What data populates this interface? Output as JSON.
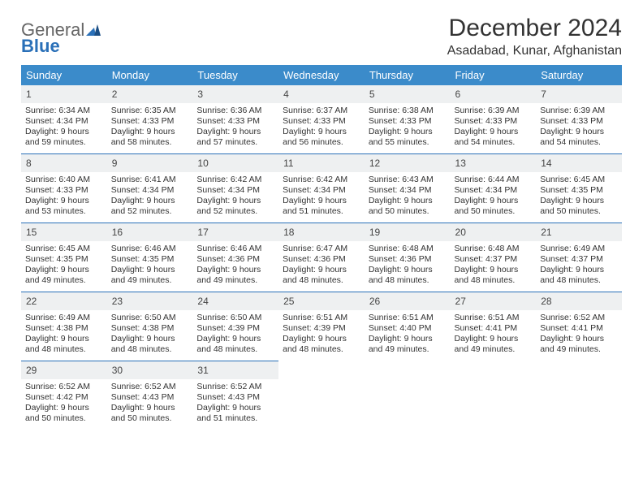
{
  "brand": {
    "line1": "General",
    "line2": "Blue"
  },
  "header": {
    "title": "December 2024",
    "location": "Asadabad, Kunar, Afghanistan"
  },
  "style": {
    "header_bg": "#3b8bca",
    "header_fg": "#ffffff",
    "daynum_bg": "#eef0f1",
    "row_divider": "#2a70b8",
    "text_color": "#333333",
    "brand_blue": "#2a70b8",
    "cell_font_size": 10.5,
    "title_font_size": 30
  },
  "weekdays": [
    "Sunday",
    "Monday",
    "Tuesday",
    "Wednesday",
    "Thursday",
    "Friday",
    "Saturday"
  ],
  "days": [
    {
      "n": 1,
      "sr": "6:34 AM",
      "ss": "4:34 PM",
      "dl": "9 hours and 59 minutes."
    },
    {
      "n": 2,
      "sr": "6:35 AM",
      "ss": "4:33 PM",
      "dl": "9 hours and 58 minutes."
    },
    {
      "n": 3,
      "sr": "6:36 AM",
      "ss": "4:33 PM",
      "dl": "9 hours and 57 minutes."
    },
    {
      "n": 4,
      "sr": "6:37 AM",
      "ss": "4:33 PM",
      "dl": "9 hours and 56 minutes."
    },
    {
      "n": 5,
      "sr": "6:38 AM",
      "ss": "4:33 PM",
      "dl": "9 hours and 55 minutes."
    },
    {
      "n": 6,
      "sr": "6:39 AM",
      "ss": "4:33 PM",
      "dl": "9 hours and 54 minutes."
    },
    {
      "n": 7,
      "sr": "6:39 AM",
      "ss": "4:33 PM",
      "dl": "9 hours and 54 minutes."
    },
    {
      "n": 8,
      "sr": "6:40 AM",
      "ss": "4:33 PM",
      "dl": "9 hours and 53 minutes."
    },
    {
      "n": 9,
      "sr": "6:41 AM",
      "ss": "4:34 PM",
      "dl": "9 hours and 52 minutes."
    },
    {
      "n": 10,
      "sr": "6:42 AM",
      "ss": "4:34 PM",
      "dl": "9 hours and 52 minutes."
    },
    {
      "n": 11,
      "sr": "6:42 AM",
      "ss": "4:34 PM",
      "dl": "9 hours and 51 minutes."
    },
    {
      "n": 12,
      "sr": "6:43 AM",
      "ss": "4:34 PM",
      "dl": "9 hours and 50 minutes."
    },
    {
      "n": 13,
      "sr": "6:44 AM",
      "ss": "4:34 PM",
      "dl": "9 hours and 50 minutes."
    },
    {
      "n": 14,
      "sr": "6:45 AM",
      "ss": "4:35 PM",
      "dl": "9 hours and 50 minutes."
    },
    {
      "n": 15,
      "sr": "6:45 AM",
      "ss": "4:35 PM",
      "dl": "9 hours and 49 minutes."
    },
    {
      "n": 16,
      "sr": "6:46 AM",
      "ss": "4:35 PM",
      "dl": "9 hours and 49 minutes."
    },
    {
      "n": 17,
      "sr": "6:46 AM",
      "ss": "4:36 PM",
      "dl": "9 hours and 49 minutes."
    },
    {
      "n": 18,
      "sr": "6:47 AM",
      "ss": "4:36 PM",
      "dl": "9 hours and 48 minutes."
    },
    {
      "n": 19,
      "sr": "6:48 AM",
      "ss": "4:36 PM",
      "dl": "9 hours and 48 minutes."
    },
    {
      "n": 20,
      "sr": "6:48 AM",
      "ss": "4:37 PM",
      "dl": "9 hours and 48 minutes."
    },
    {
      "n": 21,
      "sr": "6:49 AM",
      "ss": "4:37 PM",
      "dl": "9 hours and 48 minutes."
    },
    {
      "n": 22,
      "sr": "6:49 AM",
      "ss": "4:38 PM",
      "dl": "9 hours and 48 minutes."
    },
    {
      "n": 23,
      "sr": "6:50 AM",
      "ss": "4:38 PM",
      "dl": "9 hours and 48 minutes."
    },
    {
      "n": 24,
      "sr": "6:50 AM",
      "ss": "4:39 PM",
      "dl": "9 hours and 48 minutes."
    },
    {
      "n": 25,
      "sr": "6:51 AM",
      "ss": "4:39 PM",
      "dl": "9 hours and 48 minutes."
    },
    {
      "n": 26,
      "sr": "6:51 AM",
      "ss": "4:40 PM",
      "dl": "9 hours and 49 minutes."
    },
    {
      "n": 27,
      "sr": "6:51 AM",
      "ss": "4:41 PM",
      "dl": "9 hours and 49 minutes."
    },
    {
      "n": 28,
      "sr": "6:52 AM",
      "ss": "4:41 PM",
      "dl": "9 hours and 49 minutes."
    },
    {
      "n": 29,
      "sr": "6:52 AM",
      "ss": "4:42 PM",
      "dl": "9 hours and 50 minutes."
    },
    {
      "n": 30,
      "sr": "6:52 AM",
      "ss": "4:43 PM",
      "dl": "9 hours and 50 minutes."
    },
    {
      "n": 31,
      "sr": "6:52 AM",
      "ss": "4:43 PM",
      "dl": "9 hours and 51 minutes."
    }
  ],
  "labels": {
    "sunrise": "Sunrise:",
    "sunset": "Sunset:",
    "daylight": "Daylight:"
  }
}
